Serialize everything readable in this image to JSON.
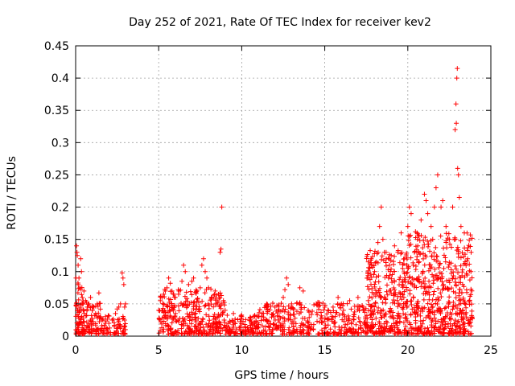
{
  "chart_data": {
    "type": "scatter",
    "title": "Day 252 of 2021, Rate Of TEC Index for receiver kev2",
    "xlabel": "GPS time / hours",
    "ylabel": "ROTI / TECUs",
    "xlim": [
      0,
      25
    ],
    "ylim": [
      0,
      0.45
    ],
    "xticks": [
      0,
      5,
      10,
      15,
      20,
      25
    ],
    "yticks": [
      0,
      0.05,
      0.1,
      0.15,
      0.2,
      0.25,
      0.3,
      0.35,
      0.4,
      0.45
    ],
    "grid": true,
    "marker": "+",
    "color": "#ff0000",
    "points": [
      [
        0.02,
        0.09
      ],
      [
        0.05,
        0.14
      ],
      [
        0.08,
        0.13
      ],
      [
        0.1,
        0.125
      ],
      [
        0.15,
        0.11
      ],
      [
        0.2,
        0.09
      ],
      [
        0.25,
        0.075
      ],
      [
        0.3,
        0.12
      ],
      [
        0.35,
        0.1
      ],
      [
        0.4,
        0.06
      ],
      [
        0.45,
        0.05
      ],
      [
        0.5,
        0.07
      ],
      [
        0.6,
        0.055
      ],
      [
        0.7,
        0.045
      ],
      [
        0.8,
        0.05
      ],
      [
        0.9,
        0.06
      ],
      [
        1.0,
        0.04
      ],
      [
        1.1,
        0.045
      ],
      [
        1.2,
        0.035
      ],
      [
        1.3,
        0.05
      ],
      [
        1.4,
        0.067
      ],
      [
        1.5,
        0.03
      ],
      [
        1.6,
        0.025
      ],
      [
        1.8,
        0.02
      ],
      [
        2.0,
        0.02
      ],
      [
        2.2,
        0.025
      ],
      [
        2.4,
        0.035
      ],
      [
        2.5,
        0.042
      ],
      [
        2.6,
        0.045
      ],
      [
        2.7,
        0.05
      ],
      [
        2.8,
        0.098
      ],
      [
        2.85,
        0.09
      ],
      [
        2.9,
        0.08
      ],
      [
        2.95,
        0.045
      ],
      [
        3.0,
        0.05
      ],
      [
        5.0,
        0.04
      ],
      [
        5.1,
        0.055
      ],
      [
        5.2,
        0.06
      ],
      [
        5.3,
        0.065
      ],
      [
        5.4,
        0.07
      ],
      [
        5.5,
        0.075
      ],
      [
        5.6,
        0.09
      ],
      [
        5.7,
        0.082
      ],
      [
        5.8,
        0.07
      ],
      [
        5.9,
        0.065
      ],
      [
        6.0,
        0.06
      ],
      [
        6.2,
        0.065
      ],
      [
        6.4,
        0.085
      ],
      [
        6.5,
        0.11
      ],
      [
        6.6,
        0.1
      ],
      [
        6.8,
        0.08
      ],
      [
        7.0,
        0.085
      ],
      [
        7.1,
        0.09
      ],
      [
        7.3,
        0.07
      ],
      [
        7.5,
        0.075
      ],
      [
        7.6,
        0.11
      ],
      [
        7.7,
        0.12
      ],
      [
        7.8,
        0.1
      ],
      [
        7.9,
        0.09
      ],
      [
        8.0,
        0.075
      ],
      [
        8.2,
        0.06
      ],
      [
        8.4,
        0.07
      ],
      [
        8.6,
        0.065
      ],
      [
        8.7,
        0.13
      ],
      [
        8.75,
        0.135
      ],
      [
        8.8,
        0.2
      ],
      [
        8.9,
        0.055
      ],
      [
        9.0,
        0.04
      ],
      [
        9.5,
        0.035
      ],
      [
        10.0,
        0.03
      ],
      [
        10.5,
        0.028
      ],
      [
        11.0,
        0.03
      ],
      [
        11.5,
        0.05
      ],
      [
        12.0,
        0.045
      ],
      [
        12.5,
        0.06
      ],
      [
        12.6,
        0.072
      ],
      [
        12.7,
        0.09
      ],
      [
        12.8,
        0.08
      ],
      [
        13.0,
        0.05
      ],
      [
        13.5,
        0.075
      ],
      [
        13.7,
        0.07
      ],
      [
        14.0,
        0.04
      ],
      [
        14.5,
        0.05
      ],
      [
        15.0,
        0.045
      ],
      [
        15.5,
        0.045
      ],
      [
        15.8,
        0.06
      ],
      [
        16.0,
        0.05
      ],
      [
        16.5,
        0.055
      ],
      [
        17.0,
        0.06
      ],
      [
        17.3,
        0.045
      ],
      [
        17.6,
        0.09
      ],
      [
        17.8,
        0.12
      ],
      [
        18.0,
        0.1
      ],
      [
        18.2,
        0.145
      ],
      [
        18.3,
        0.17
      ],
      [
        18.4,
        0.2
      ],
      [
        18.5,
        0.15
      ],
      [
        18.7,
        0.12
      ],
      [
        18.9,
        0.11
      ],
      [
        19.0,
        0.125
      ],
      [
        19.2,
        0.14
      ],
      [
        19.4,
        0.13
      ],
      [
        19.6,
        0.16
      ],
      [
        19.8,
        0.12
      ],
      [
        20.0,
        0.17
      ],
      [
        20.1,
        0.2
      ],
      [
        20.2,
        0.19
      ],
      [
        20.4,
        0.13
      ],
      [
        20.6,
        0.14
      ],
      [
        20.8,
        0.18
      ],
      [
        21.0,
        0.22
      ],
      [
        21.1,
        0.21
      ],
      [
        21.2,
        0.19
      ],
      [
        21.4,
        0.17
      ],
      [
        21.5,
        0.15
      ],
      [
        21.6,
        0.2
      ],
      [
        21.7,
        0.23
      ],
      [
        21.8,
        0.25
      ],
      [
        22.0,
        0.2
      ],
      [
        22.1,
        0.21
      ],
      [
        22.3,
        0.17
      ],
      [
        22.5,
        0.15
      ],
      [
        22.7,
        0.2
      ],
      [
        22.85,
        0.32
      ],
      [
        22.9,
        0.36
      ],
      [
        22.92,
        0.33
      ],
      [
        22.95,
        0.4
      ],
      [
        22.98,
        0.415
      ],
      [
        23.0,
        0.26
      ],
      [
        23.05,
        0.25
      ],
      [
        23.1,
        0.215
      ],
      [
        23.2,
        0.17
      ],
      [
        23.4,
        0.16
      ],
      [
        23.6,
        0.12
      ],
      [
        23.8,
        0.1
      ]
    ],
    "density": [
      {
        "x0": 0.0,
        "x1": 0.5,
        "y0": 0.0,
        "y1": 0.08,
        "n": 70,
        "seed": 11
      },
      {
        "x0": 0.5,
        "x1": 1.5,
        "y0": 0.0,
        "y1": 0.05,
        "n": 70,
        "seed": 12
      },
      {
        "x0": 1.5,
        "x1": 3.0,
        "y0": 0.0,
        "y1": 0.03,
        "n": 70,
        "seed": 13
      },
      {
        "x0": 5.0,
        "x1": 9.0,
        "y0": 0.0,
        "y1": 0.07,
        "n": 320,
        "seed": 14
      },
      {
        "x0": 9.0,
        "x1": 11.0,
        "y0": 0.0,
        "y1": 0.03,
        "n": 110,
        "seed": 15
      },
      {
        "x0": 11.0,
        "x1": 14.5,
        "y0": 0.0,
        "y1": 0.05,
        "n": 200,
        "seed": 16
      },
      {
        "x0": 14.5,
        "x1": 17.5,
        "y0": 0.0,
        "y1": 0.05,
        "n": 170,
        "seed": 17
      },
      {
        "x0": 17.5,
        "x1": 20.0,
        "y0": 0.0,
        "y1": 0.13,
        "n": 320,
        "seed": 18
      },
      {
        "x0": 20.0,
        "x1": 23.9,
        "y0": 0.0,
        "y1": 0.16,
        "n": 520,
        "seed": 19
      }
    ]
  }
}
